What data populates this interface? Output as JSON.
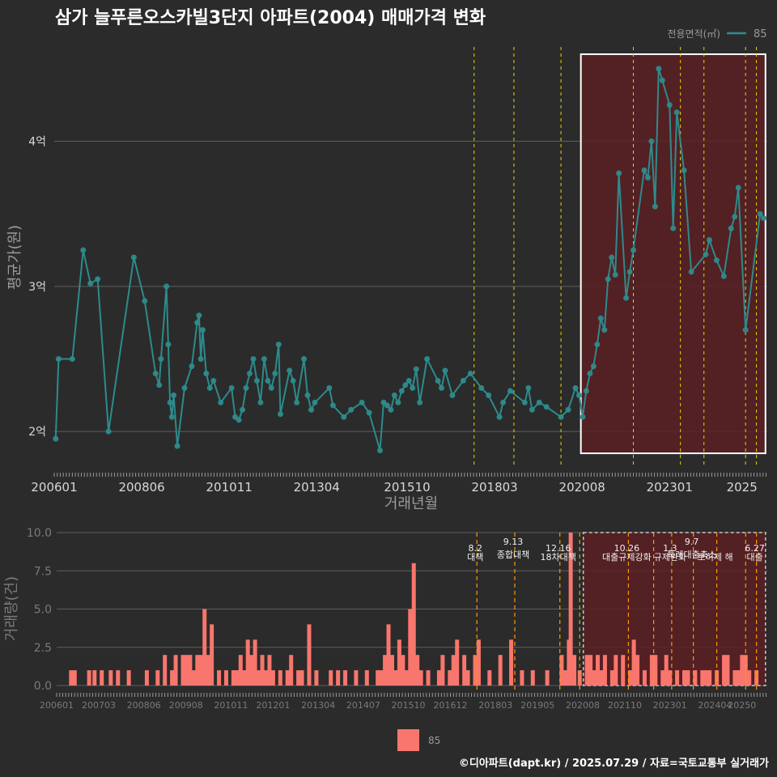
{
  "chart_data": [
    {
      "type": "line",
      "title": "삼가 늘푸른오스카빌3단지 아파트(2004) 매매가격 변화",
      "xlabel": "거래년월",
      "ylabel": "평균가(원)",
      "yticks": [
        {
          "value": 2.0,
          "label": "2억"
        },
        {
          "value": 3.0,
          "label": "3억"
        },
        {
          "value": 4.0,
          "label": "4억"
        }
      ],
      "ylim": [
        1.75,
        4.65
      ],
      "xlim": [
        2006.0,
        2025.7
      ],
      "xticks": [
        "200601",
        "200806",
        "201011",
        "201304",
        "201510",
        "201803",
        "202008",
        "202301",
        "2025"
      ],
      "legend": {
        "title": "전용면적(㎡)",
        "entries": [
          "85"
        ],
        "position": "top-right"
      },
      "series": [
        {
          "name": "85",
          "color": "#2e8b8b",
          "points": [
            [
              2006.04,
              1.95
            ],
            [
              2006.12,
              2.5
            ],
            [
              2006.5,
              2.5
            ],
            [
              2006.8,
              3.25
            ],
            [
              2007.0,
              3.02
            ],
            [
              2007.2,
              3.05
            ],
            [
              2007.5,
              2.0
            ],
            [
              2008.2,
              3.2
            ],
            [
              2008.5,
              2.9
            ],
            [
              2008.8,
              2.4
            ],
            [
              2008.9,
              2.32
            ],
            [
              2008.95,
              2.5
            ],
            [
              2009.1,
              3.0
            ],
            [
              2009.15,
              2.6
            ],
            [
              2009.2,
              2.2
            ],
            [
              2009.25,
              2.1
            ],
            [
              2009.3,
              2.25
            ],
            [
              2009.4,
              1.9
            ],
            [
              2009.6,
              2.3
            ],
            [
              2009.8,
              2.45
            ],
            [
              2009.95,
              2.75
            ],
            [
              2010.0,
              2.8
            ],
            [
              2010.05,
              2.5
            ],
            [
              2010.1,
              2.7
            ],
            [
              2010.2,
              2.4
            ],
            [
              2010.3,
              2.3
            ],
            [
              2010.4,
              2.35
            ],
            [
              2010.6,
              2.2
            ],
            [
              2010.9,
              2.3
            ],
            [
              2011.0,
              2.1
            ],
            [
              2011.1,
              2.08
            ],
            [
              2011.2,
              2.15
            ],
            [
              2011.3,
              2.3
            ],
            [
              2011.4,
              2.4
            ],
            [
              2011.5,
              2.5
            ],
            [
              2011.6,
              2.35
            ],
            [
              2011.7,
              2.2
            ],
            [
              2011.8,
              2.5
            ],
            [
              2011.9,
              2.35
            ],
            [
              2012.0,
              2.3
            ],
            [
              2012.1,
              2.4
            ],
            [
              2012.2,
              2.6
            ],
            [
              2012.25,
              2.12
            ],
            [
              2012.5,
              2.42
            ],
            [
              2012.6,
              2.35
            ],
            [
              2012.7,
              2.2
            ],
            [
              2012.9,
              2.5
            ],
            [
              2013.0,
              2.25
            ],
            [
              2013.1,
              2.15
            ],
            [
              2013.2,
              2.2
            ],
            [
              2013.6,
              2.3
            ],
            [
              2013.7,
              2.18
            ],
            [
              2014.0,
              2.1
            ],
            [
              2014.2,
              2.15
            ],
            [
              2014.5,
              2.2
            ],
            [
              2014.7,
              2.13
            ],
            [
              2015.0,
              1.87
            ],
            [
              2015.1,
              2.2
            ],
            [
              2015.2,
              2.18
            ],
            [
              2015.3,
              2.15
            ],
            [
              2015.4,
              2.25
            ],
            [
              2015.5,
              2.2
            ],
            [
              2015.6,
              2.28
            ],
            [
              2015.7,
              2.32
            ],
            [
              2015.8,
              2.35
            ],
            [
              2015.9,
              2.3
            ],
            [
              2016.0,
              2.43
            ],
            [
              2016.1,
              2.2
            ],
            [
              2016.3,
              2.5
            ],
            [
              2016.6,
              2.35
            ],
            [
              2016.7,
              2.3
            ],
            [
              2016.8,
              2.42
            ],
            [
              2017.0,
              2.25
            ],
            [
              2017.3,
              2.35
            ],
            [
              2017.5,
              2.4
            ],
            [
              2017.8,
              2.3
            ],
            [
              2018.0,
              2.25
            ],
            [
              2018.3,
              2.1
            ],
            [
              2018.4,
              2.2
            ],
            [
              2018.6,
              2.28
            ],
            [
              2019.0,
              2.2
            ],
            [
              2019.1,
              2.3
            ],
            [
              2019.2,
              2.15
            ],
            [
              2019.4,
              2.2
            ],
            [
              2019.6,
              2.17
            ],
            [
              2020.0,
              2.1
            ],
            [
              2020.2,
              2.15
            ],
            [
              2020.4,
              2.3
            ],
            [
              2020.5,
              2.25
            ],
            [
              2020.6,
              2.1
            ],
            [
              2020.7,
              2.28
            ],
            [
              2020.8,
              2.4
            ],
            [
              2020.9,
              2.45
            ],
            [
              2021.0,
              2.6
            ],
            [
              2021.1,
              2.78
            ],
            [
              2021.2,
              2.7
            ],
            [
              2021.3,
              3.05
            ],
            [
              2021.4,
              3.2
            ],
            [
              2021.5,
              3.08
            ],
            [
              2021.6,
              3.78
            ],
            [
              2021.8,
              2.92
            ],
            [
              2021.9,
              3.1
            ],
            [
              2022.0,
              3.25
            ],
            [
              2022.3,
              3.8
            ],
            [
              2022.4,
              3.75
            ],
            [
              2022.5,
              4.0
            ],
            [
              2022.6,
              3.55
            ],
            [
              2022.7,
              4.5
            ],
            [
              2022.8,
              4.42
            ],
            [
              2023.0,
              4.25
            ],
            [
              2023.1,
              3.4
            ],
            [
              2023.2,
              4.2
            ],
            [
              2023.4,
              3.8
            ],
            [
              2023.6,
              3.1
            ],
            [
              2024.0,
              3.22
            ],
            [
              2024.1,
              3.32
            ],
            [
              2024.3,
              3.18
            ],
            [
              2024.5,
              3.07
            ],
            [
              2024.7,
              3.4
            ],
            [
              2024.8,
              3.48
            ],
            [
              2024.9,
              3.68
            ],
            [
              2025.1,
              2.7
            ],
            [
              2025.5,
              3.5
            ],
            [
              2025.6,
              3.47
            ]
          ]
        }
      ],
      "vlines_color": "#e6d400",
      "vlines": [
        2017.6,
        2018.7,
        2020.0,
        2022.0,
        2023.3,
        2023.95,
        2025.1,
        2025.4
      ],
      "highlight": {
        "from": 2020.55,
        "to": 2025.65,
        "yfrom": 1.85,
        "yto": 4.6,
        "fill": "#5a1f23",
        "stroke": "#ffffff"
      }
    },
    {
      "type": "bar",
      "ylabel": "거래량(건)",
      "ylim": [
        0,
        10
      ],
      "yticks": [
        {
          "value": 0,
          "label": "0.0"
        },
        {
          "value": 2.5,
          "label": "2.5"
        },
        {
          "value": 5,
          "label": "5.0"
        },
        {
          "value": 7.5,
          "label": "7.5"
        },
        {
          "value": 10,
          "label": "10.0"
        }
      ],
      "xticks": [
        "200601",
        "200703",
        "200806",
        "200908",
        "201011",
        "201201",
        "201304",
        "201407",
        "201510",
        "201612",
        "201803",
        "201905",
        "202008",
        "202110",
        "202301",
        "202404",
        "20250"
      ],
      "legend": {
        "entries": [
          "85"
        ],
        "color": "#f8766d",
        "position": "bottom"
      },
      "bar_color": "#f8766d",
      "policy_lines_color": "#ff9900",
      "policy_lines": [
        {
          "x": 2017.65,
          "date": "8.2",
          "label": "대책"
        },
        {
          "x": 2018.7,
          "date": "9.13",
          "label": "종합대책"
        },
        {
          "x": 2019.95,
          "date": "12.16",
          "label": "18차대책"
        },
        {
          "x": 2020.5,
          "date": "",
          "label": ""
        },
        {
          "x": 2021.85,
          "date": "10.26",
          "label": "대출규제강화"
        },
        {
          "x": 2022.55,
          "date": "",
          "label": ""
        },
        {
          "x": 2023.05,
          "date": "1.3",
          "label": "규제완화"
        },
        {
          "x": 2023.65,
          "date": "9.7",
          "label": "특례대출축소"
        },
        {
          "x": 2024.3,
          "date": "",
          "label": "토허제 해"
        },
        {
          "x": 2025.1,
          "date": "",
          "label": ""
        },
        {
          "x": 2025.4,
          "date": "6.27",
          "label": "대출"
        }
      ],
      "highlight": {
        "from": 2020.6,
        "to": 2025.65,
        "fill": "#5a1f23"
      },
      "bars": [
        [
          2006.4,
          1
        ],
        [
          2006.5,
          1
        ],
        [
          2006.9,
          1
        ],
        [
          2007.05,
          1
        ],
        [
          2007.25,
          1
        ],
        [
          2007.5,
          1
        ],
        [
          2007.7,
          1
        ],
        [
          2008.0,
          1
        ],
        [
          2008.5,
          1
        ],
        [
          2008.8,
          1
        ],
        [
          2009.0,
          2
        ],
        [
          2009.2,
          1
        ],
        [
          2009.3,
          2
        ],
        [
          2009.5,
          2
        ],
        [
          2009.6,
          2
        ],
        [
          2009.7,
          2
        ],
        [
          2009.8,
          1
        ],
        [
          2009.9,
          2
        ],
        [
          2010.0,
          2
        ],
        [
          2010.1,
          5
        ],
        [
          2010.2,
          2
        ],
        [
          2010.3,
          4
        ],
        [
          2010.5,
          1
        ],
        [
          2010.7,
          1
        ],
        [
          2010.9,
          1
        ],
        [
          2011.0,
          1
        ],
        [
          2011.1,
          2
        ],
        [
          2011.2,
          1
        ],
        [
          2011.3,
          3
        ],
        [
          2011.4,
          2
        ],
        [
          2011.5,
          3
        ],
        [
          2011.6,
          1
        ],
        [
          2011.7,
          2
        ],
        [
          2011.8,
          1
        ],
        [
          2011.9,
          2
        ],
        [
          2012.0,
          1
        ],
        [
          2012.2,
          1
        ],
        [
          2012.4,
          1
        ],
        [
          2012.5,
          2
        ],
        [
          2012.7,
          1
        ],
        [
          2012.8,
          1
        ],
        [
          2013.0,
          4
        ],
        [
          2013.2,
          1
        ],
        [
          2013.6,
          1
        ],
        [
          2013.8,
          1
        ],
        [
          2014.0,
          1
        ],
        [
          2014.3,
          1
        ],
        [
          2014.6,
          1
        ],
        [
          2014.9,
          1
        ],
        [
          2015.0,
          1
        ],
        [
          2015.1,
          2
        ],
        [
          2015.2,
          4
        ],
        [
          2015.3,
          2
        ],
        [
          2015.4,
          1
        ],
        [
          2015.5,
          3
        ],
        [
          2015.6,
          2
        ],
        [
          2015.7,
          1
        ],
        [
          2015.8,
          5
        ],
        [
          2015.9,
          8
        ],
        [
          2016.0,
          2
        ],
        [
          2016.1,
          1
        ],
        [
          2016.3,
          1
        ],
        [
          2016.6,
          1
        ],
        [
          2016.7,
          2
        ],
        [
          2016.9,
          1
        ],
        [
          2017.0,
          2
        ],
        [
          2017.1,
          3
        ],
        [
          2017.3,
          2
        ],
        [
          2017.4,
          1
        ],
        [
          2017.6,
          2
        ],
        [
          2017.7,
          3
        ],
        [
          2018.0,
          1
        ],
        [
          2018.3,
          2
        ],
        [
          2018.6,
          3
        ],
        [
          2018.9,
          1
        ],
        [
          2019.2,
          1
        ],
        [
          2019.6,
          1
        ],
        [
          2020.0,
          2
        ],
        [
          2020.1,
          1
        ],
        [
          2020.2,
          3
        ],
        [
          2020.25,
          10
        ],
        [
          2020.35,
          2
        ],
        [
          2020.5,
          1
        ],
        [
          2020.7,
          2
        ],
        [
          2020.8,
          2
        ],
        [
          2020.9,
          1
        ],
        [
          2021.0,
          2
        ],
        [
          2021.1,
          1
        ],
        [
          2021.2,
          2
        ],
        [
          2021.4,
          1
        ],
        [
          2021.5,
          2
        ],
        [
          2021.7,
          2
        ],
        [
          2021.9,
          1
        ],
        [
          2022.0,
          3
        ],
        [
          2022.1,
          2
        ],
        [
          2022.3,
          1
        ],
        [
          2022.5,
          2
        ],
        [
          2022.6,
          2
        ],
        [
          2022.8,
          1
        ],
        [
          2022.9,
          2
        ],
        [
          2023.0,
          1
        ],
        [
          2023.2,
          1
        ],
        [
          2023.4,
          1
        ],
        [
          2023.5,
          1
        ],
        [
          2023.7,
          1
        ],
        [
          2023.9,
          1
        ],
        [
          2024.0,
          1
        ],
        [
          2024.1,
          1
        ],
        [
          2024.3,
          1
        ],
        [
          2024.5,
          2
        ],
        [
          2024.6,
          2
        ],
        [
          2024.8,
          1
        ],
        [
          2024.9,
          1
        ],
        [
          2025.0,
          2
        ],
        [
          2025.1,
          2
        ],
        [
          2025.2,
          1
        ],
        [
          2025.4,
          1
        ]
      ]
    }
  ],
  "footer": {
    "source": "©디아파트(dapt.kr) / 2025.07.29 / 자료=국토교통부 실거래가"
  }
}
